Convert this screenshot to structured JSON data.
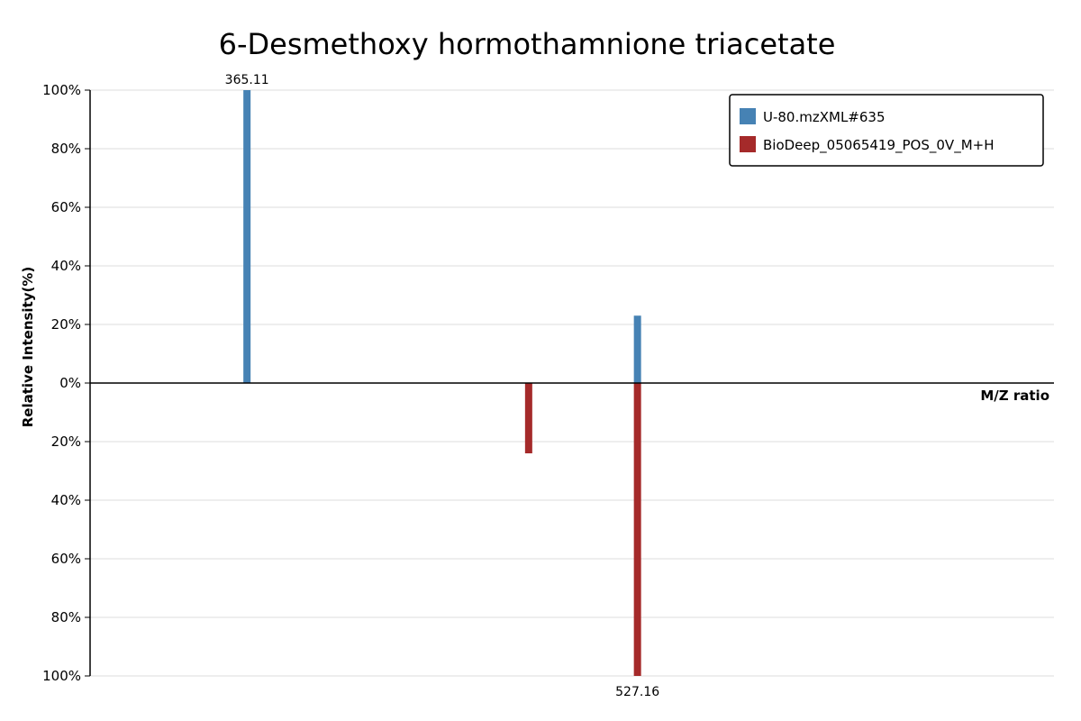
{
  "chart_data": {
    "type": "bar",
    "title": "6-Desmethoxy hormothamnione triacetate",
    "xlabel": "M/Z ratio",
    "ylabel": "Relative Intensity(%)",
    "xlim": [
      300,
      700
    ],
    "ylim": [
      -100,
      100
    ],
    "y_ticks": [
      {
        "value": 100,
        "label": "100%"
      },
      {
        "value": 80,
        "label": "80%"
      },
      {
        "value": 60,
        "label": "60%"
      },
      {
        "value": 40,
        "label": "40%"
      },
      {
        "value": 20,
        "label": "20%"
      },
      {
        "value": 0,
        "label": "0%"
      },
      {
        "value": -20,
        "label": "20%"
      },
      {
        "value": -40,
        "label": "40%"
      },
      {
        "value": -60,
        "label": "60%"
      },
      {
        "value": -80,
        "label": "80%"
      },
      {
        "value": -100,
        "label": "100%"
      }
    ],
    "grid": true,
    "legend_position": "top-right",
    "series": [
      {
        "name": "U-80.mzXML#635",
        "color": "#4682b4",
        "direction": "up",
        "peaks": [
          {
            "mz": 365.11,
            "intensity": 100,
            "label": "365.11"
          },
          {
            "mz": 527.16,
            "intensity": 23,
            "label": ""
          }
        ]
      },
      {
        "name": "BioDeep_05065419_POS_0V_M+H",
        "color": "#a52a2a",
        "direction": "down",
        "peaks": [
          {
            "mz": 482.0,
            "intensity": 24,
            "label": ""
          },
          {
            "mz": 527.16,
            "intensity": 100,
            "label": "527.16"
          }
        ]
      }
    ]
  }
}
